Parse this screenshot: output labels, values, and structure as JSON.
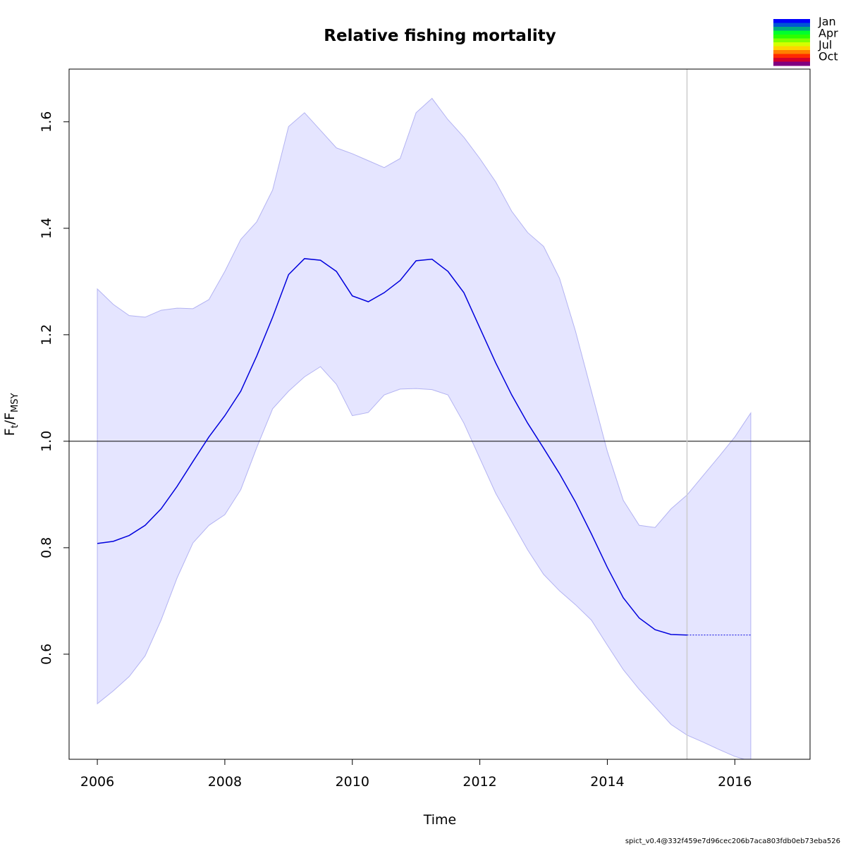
{
  "chart_data": {
    "type": "line",
    "title": "Relative fishing mortality",
    "xlabel": "Time",
    "ylabel_parts": [
      "F",
      "t",
      "/F",
      "MSY"
    ],
    "footer": "spict_v0.4@332f459e7d96cec206b7aca803fdb0eb73eba526",
    "x": [
      2006,
      2006.25,
      2006.5,
      2006.75,
      2007,
      2007.25,
      2007.5,
      2007.75,
      2008,
      2008.25,
      2008.5,
      2008.75,
      2009,
      2009.25,
      2009.5,
      2009.75,
      2010,
      2010.25,
      2010.5,
      2010.75,
      2011,
      2011.25,
      2011.5,
      2011.75,
      2012,
      2012.25,
      2012.5,
      2012.75,
      2013,
      2013.25,
      2013.5,
      2013.75,
      2014,
      2014.25,
      2014.5,
      2014.75,
      2015,
      2015.25,
      2015.5,
      2015.75,
      2016,
      2016.25
    ],
    "estimate": [
      0.808,
      0.812,
      0.823,
      0.842,
      0.873,
      0.915,
      0.962,
      1.008,
      1.048,
      1.094,
      1.16,
      1.233,
      1.313,
      1.343,
      1.34,
      1.319,
      1.273,
      1.262,
      1.279,
      1.302,
      1.339,
      1.342,
      1.319,
      1.279,
      1.213,
      1.147,
      1.087,
      1.034,
      0.987,
      0.939,
      0.886,
      0.826,
      0.763,
      0.706,
      0.668,
      0.646,
      0.637,
      0.636,
      null,
      null,
      null,
      null
    ],
    "forecast": [
      null,
      null,
      null,
      null,
      null,
      null,
      null,
      null,
      null,
      null,
      null,
      null,
      null,
      null,
      null,
      null,
      null,
      null,
      null,
      null,
      null,
      null,
      null,
      null,
      null,
      null,
      null,
      null,
      null,
      null,
      null,
      null,
      null,
      null,
      null,
      null,
      null,
      0.636,
      0.636,
      0.636,
      0.636,
      0.636
    ],
    "ci_upper": [
      1.286,
      1.257,
      1.236,
      1.233,
      1.246,
      1.25,
      1.249,
      1.266,
      1.319,
      1.379,
      1.412,
      1.472,
      1.591,
      1.617,
      1.584,
      1.551,
      1.54,
      1.527,
      1.514,
      1.531,
      1.617,
      1.644,
      1.604,
      1.571,
      1.531,
      1.487,
      1.432,
      1.392,
      1.366,
      1.306,
      1.207,
      1.094,
      0.981,
      0.889,
      0.842,
      0.838,
      0.873,
      0.899,
      0.935,
      0.971,
      1.008,
      1.053
    ],
    "ci_lower": [
      0.507,
      0.531,
      0.558,
      0.597,
      0.664,
      0.743,
      0.809,
      0.842,
      0.862,
      0.909,
      0.988,
      1.061,
      1.094,
      1.121,
      1.14,
      1.107,
      1.048,
      1.054,
      1.087,
      1.098,
      1.099,
      1.097,
      1.087,
      1.034,
      0.968,
      0.902,
      0.849,
      0.796,
      0.75,
      0.719,
      0.693,
      0.664,
      0.617,
      0.571,
      0.534,
      0.501,
      0.468,
      0.448,
      0.435,
      0.421,
      0.408,
      0.399
    ],
    "line_color": "#0000dd",
    "band_color": "#e5e5ff",
    "band_edge_color": "#b3b3f2",
    "hline": 1,
    "vline": 2015.25,
    "xlim": [
      2005.557,
      2017.18
    ],
    "ylim": [
      0.4026,
      1.699
    ],
    "xticks": [
      2006,
      2008,
      2010,
      2012,
      2014,
      2016
    ],
    "yticks": [
      0.6,
      0.8,
      {
        "value": 1,
        "label": "1.0"
      },
      1.2,
      1.4,
      1.6
    ],
    "legend": {
      "position": "top-right",
      "labels": [
        "Jan",
        "Apr",
        "Jul",
        "Oct"
      ],
      "colors": [
        "#0000FF",
        "#0055D4",
        "#00AA80",
        "#00FF2B",
        "#2BFF00",
        "#80FF00",
        "#D4FF00",
        "#FFD400",
        "#FF8000",
        "#FF2B00",
        "#D4002B",
        "#800080"
      ]
    }
  }
}
